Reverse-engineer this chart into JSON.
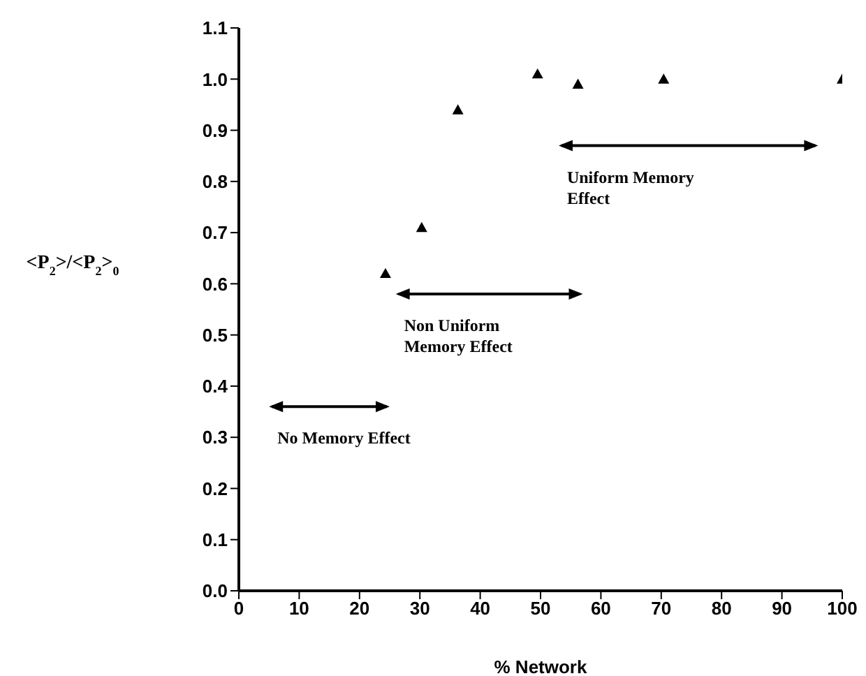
{
  "chart_data": {
    "type": "scatter",
    "xlabel": "% Network",
    "ylabel": "<P$_{2}$>/<P$_{2}$>$_{0}$",
    "x": [
      24.3,
      30.3,
      36.3,
      49.5,
      56.2,
      70.4,
      100
    ],
    "values": [
      0.62,
      0.71,
      0.94,
      1.01,
      0.99,
      1.0,
      1.0
    ],
    "color": "#000000",
    "marker": "triangle",
    "xlim": [
      0,
      100
    ],
    "xticks": [
      0,
      10,
      20,
      30,
      40,
      50,
      60,
      70,
      80,
      90,
      100
    ],
    "ylim": [
      0,
      1.1
    ],
    "yticks": [
      {
        "value": 0,
        "label": "0.0"
      },
      {
        "value": 0.1,
        "label": "0.1"
      },
      {
        "value": 0.2,
        "label": "0.2"
      },
      {
        "value": 0.3,
        "label": "0.3"
      },
      {
        "value": 0.4,
        "label": "0.4"
      },
      {
        "value": 0.5,
        "label": "0.5"
      },
      {
        "value": 0.6,
        "label": "0.6"
      },
      {
        "value": 0.7,
        "label": "0.7"
      },
      {
        "value": 0.8,
        "label": "0.8"
      },
      {
        "value": 0.9,
        "label": "0.9"
      },
      {
        "value": 1,
        "label": "1.0"
      },
      {
        "value": 1.1,
        "label": "1.1"
      }
    ],
    "annotations": [
      "Uniform Memory Effect",
      "Non Uniform Memory Effect",
      "No Memory Effect"
    ]
  }
}
